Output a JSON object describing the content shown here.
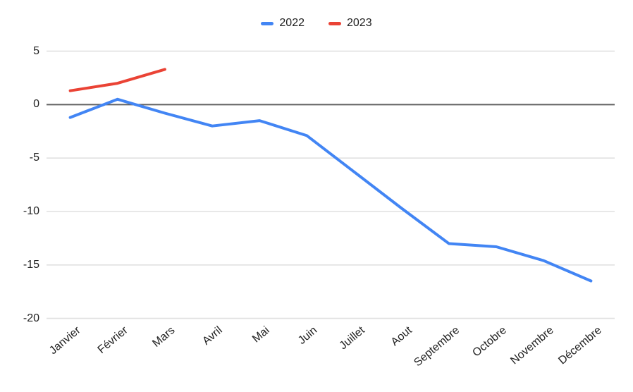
{
  "legend": {
    "items": [
      {
        "label": "2022",
        "color": "#4285F4"
      },
      {
        "label": "2023",
        "color": "#EA4335"
      }
    ]
  },
  "colors": {
    "background": "#ffffff",
    "gridline": "#e0e0e0",
    "zero_line": "#616161",
    "axis_text": "#222222",
    "series_2022": "#4285F4",
    "series_2023": "#EA4335"
  },
  "chart_data": {
    "type": "line",
    "title": "",
    "xlabel": "",
    "ylabel": "",
    "categories": [
      "Janvier",
      "Février",
      "Mars",
      "Avril",
      "Mai",
      "Juin",
      "Juillet",
      "Aout",
      "Septembre",
      "Octobre",
      "Novembre",
      "Décembre"
    ],
    "series": [
      {
        "name": "2022",
        "color": "#4285F4",
        "values": [
          -1.2,
          0.5,
          -0.8,
          -2.0,
          -1.5,
          -2.9,
          -6.3,
          -9.7,
          -13.0,
          -13.3,
          -14.6,
          -16.5
        ]
      },
      {
        "name": "2023",
        "color": "#EA4335",
        "values": [
          1.3,
          2.0,
          3.3
        ]
      }
    ],
    "y_ticks": [
      5,
      0,
      -5,
      -10,
      -15,
      -20
    ],
    "ylim": [
      -20,
      5
    ],
    "grid": true,
    "zero_line_value": 0,
    "legend_position": "top"
  }
}
